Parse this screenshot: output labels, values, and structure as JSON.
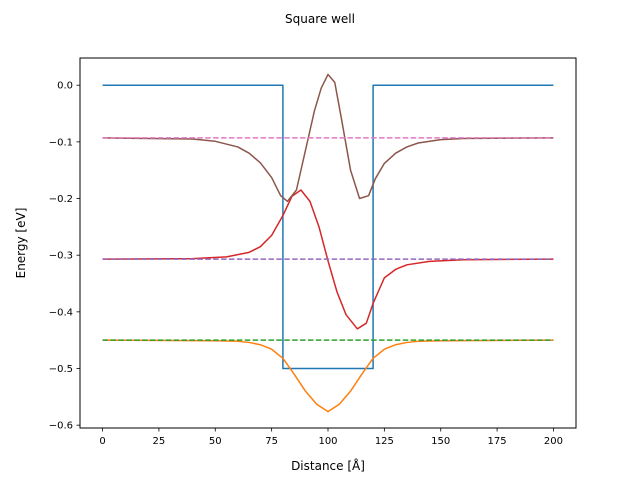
{
  "chart_data": {
    "type": "line",
    "title": "Square well",
    "xlabel": "Distance [Å]",
    "ylabel": "Energy [eV]",
    "xlim": [
      -10,
      210
    ],
    "ylim": [
      -0.605,
      0.048
    ],
    "xticks": [
      0,
      25,
      50,
      75,
      100,
      125,
      150,
      175,
      200
    ],
    "xtick_labels": [
      "0",
      "25",
      "50",
      "75",
      "100",
      "125",
      "150",
      "175",
      "200"
    ],
    "yticks": [
      0.0,
      -0.1,
      -0.2,
      -0.3,
      -0.4,
      -0.5,
      -0.6
    ],
    "ytick_labels": [
      "0.0",
      "−0.1",
      "−0.2",
      "−0.3",
      "−0.4",
      "−0.5",
      "−0.6"
    ],
    "grid": false,
    "legend": "none",
    "series": [
      {
        "color": "#1f77b4",
        "style": "solid",
        "x": [
          0,
          80,
          80,
          120,
          120,
          200
        ],
        "y": [
          0.0,
          0.0,
          -0.5,
          -0.5,
          0.0,
          0.0
        ]
      },
      {
        "color": "#ff7f0e",
        "style": "solid",
        "x": [
          0,
          50,
          60,
          65,
          70,
          75,
          80,
          85,
          90,
          95,
          100,
          105,
          110,
          115,
          120,
          125,
          130,
          135,
          140,
          150,
          200
        ],
        "y": [
          -0.45,
          -0.451,
          -0.452,
          -0.454,
          -0.458,
          -0.466,
          -0.482,
          -0.51,
          -0.54,
          -0.563,
          -0.576,
          -0.563,
          -0.54,
          -0.51,
          -0.482,
          -0.466,
          -0.458,
          -0.454,
          -0.452,
          -0.451,
          -0.45
        ]
      },
      {
        "color": "#2ca02c",
        "style": "dashed",
        "x": [
          0,
          200
        ],
        "y": [
          -0.45,
          -0.45
        ]
      },
      {
        "color": "#d62728",
        "style": "solid",
        "x": [
          0,
          40,
          55,
          65,
          70,
          75,
          80,
          84,
          88,
          92,
          96,
          100,
          104,
          108,
          113,
          117,
          120,
          125,
          130,
          135,
          145,
          160,
          200
        ],
        "y": [
          -0.307,
          -0.306,
          -0.303,
          -0.295,
          -0.285,
          -0.265,
          -0.23,
          -0.196,
          -0.185,
          -0.205,
          -0.25,
          -0.31,
          -0.365,
          -0.405,
          -0.43,
          -0.42,
          -0.385,
          -0.34,
          -0.325,
          -0.317,
          -0.311,
          -0.308,
          -0.307
        ]
      },
      {
        "color": "#9467bd",
        "style": "dashed",
        "x": [
          0,
          200
        ],
        "y": [
          -0.307,
          -0.307
        ]
      },
      {
        "color": "#8c564b",
        "style": "solid",
        "x": [
          0,
          40,
          50,
          60,
          65,
          70,
          75,
          79,
          82,
          86,
          90,
          94,
          97,
          100,
          103,
          106,
          110,
          114,
          118,
          121,
          125,
          130,
          135,
          140,
          150,
          160,
          200
        ],
        "y": [
          -0.093,
          -0.095,
          -0.099,
          -0.109,
          -0.12,
          -0.137,
          -0.163,
          -0.195,
          -0.205,
          -0.185,
          -0.115,
          -0.045,
          -0.005,
          0.019,
          0.005,
          -0.06,
          -0.15,
          -0.2,
          -0.195,
          -0.165,
          -0.138,
          -0.12,
          -0.109,
          -0.102,
          -0.096,
          -0.094,
          -0.093
        ]
      },
      {
        "color": "#e377c2",
        "style": "dashed",
        "x": [
          0,
          200
        ],
        "y": [
          -0.093,
          -0.093
        ]
      }
    ]
  }
}
